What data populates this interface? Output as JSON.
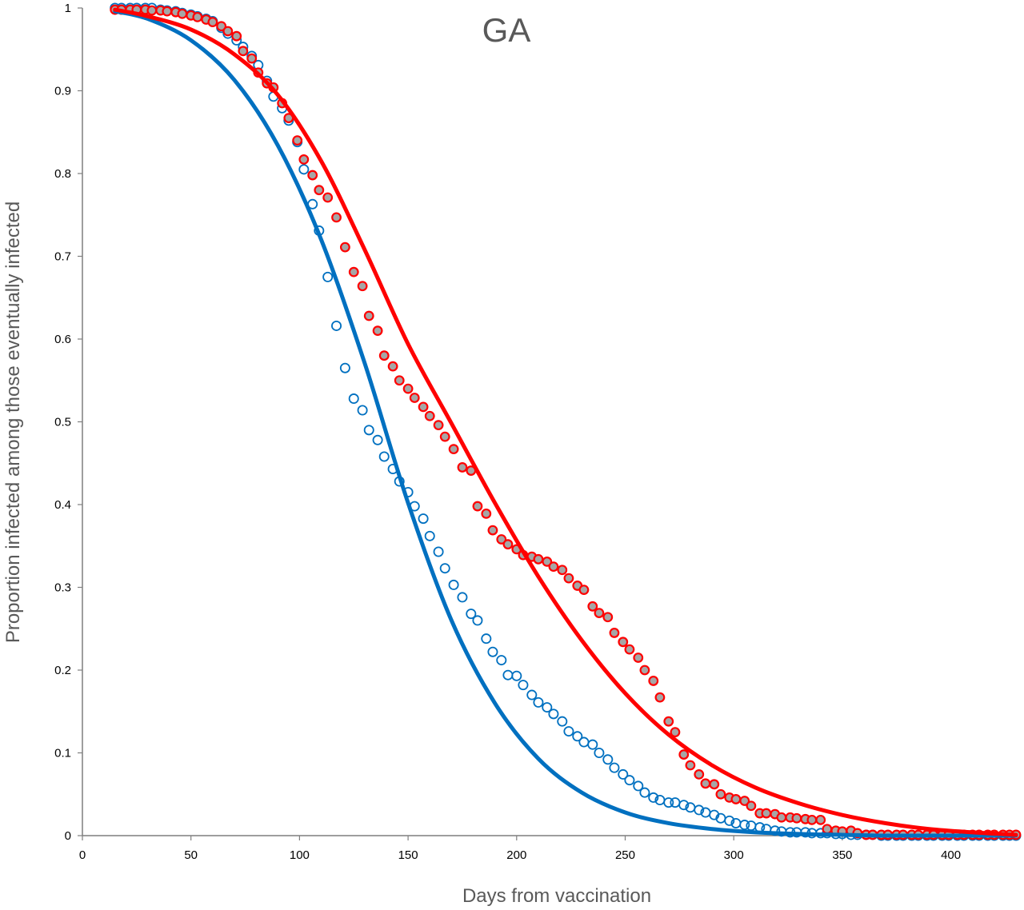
{
  "chart_data": {
    "type": "scatter",
    "title": "GA",
    "xlabel": "Days from vaccination",
    "ylabel": "Proportion infected among those eventually infected",
    "xlim": [
      0,
      430
    ],
    "ylim": [
      0,
      1
    ],
    "xticks": [
      0,
      50,
      100,
      150,
      200,
      250,
      300,
      350,
      400
    ],
    "yticks": [
      0,
      0.1,
      0.2,
      0.3,
      0.4,
      0.5,
      0.6,
      0.7,
      0.8,
      0.9,
      1
    ],
    "ytick_labels": [
      "0",
      "0.1",
      "0.2",
      "0.3",
      "0.4",
      "0.5",
      "0.6",
      "0.7",
      "0.8",
      "0.9",
      "1"
    ],
    "grid": false,
    "legend": "none",
    "colors": {
      "blue": "#0070c0",
      "red": "#ff0000",
      "gray_fill": "#a6a6a6",
      "axis": "#7f7f7f"
    },
    "series": [
      {
        "kind": "points-hollow",
        "color": "#0070c0",
        "x": [
          15,
          18,
          22,
          25,
          29,
          32,
          36,
          39,
          43,
          46,
          50,
          53,
          57,
          60,
          64,
          67,
          71,
          74,
          78,
          81,
          85,
          88,
          92,
          95,
          99,
          102,
          106,
          109,
          113,
          117,
          121,
          125,
          129,
          132,
          136,
          139,
          143,
          146,
          150,
          153,
          157,
          160,
          164,
          167,
          171,
          175,
          179,
          182,
          186,
          189,
          193,
          196,
          200,
          203,
          207,
          210,
          214,
          217,
          221,
          224,
          228,
          231,
          235,
          238,
          242,
          245,
          249,
          252,
          256,
          259,
          263,
          266,
          270,
          273,
          277,
          280,
          284,
          287,
          291,
          294,
          298,
          301,
          305,
          308,
          312,
          315,
          319,
          322,
          326,
          329,
          333,
          336,
          340,
          343,
          347,
          350,
          354,
          357,
          361,
          364,
          368,
          371,
          375,
          378,
          382,
          385,
          389,
          392,
          396,
          399,
          403,
          406,
          410,
          413,
          417,
          420,
          424,
          427,
          430
        ],
        "y": [
          1.0,
          1.0,
          1.0,
          1.0,
          1.0,
          1.0,
          0.998,
          0.997,
          0.996,
          0.994,
          0.992,
          0.99,
          0.987,
          0.984,
          0.976,
          0.969,
          0.961,
          0.953,
          0.942,
          0.931,
          0.912,
          0.893,
          0.879,
          0.864,
          0.838,
          0.805,
          0.763,
          0.731,
          0.675,
          0.616,
          0.565,
          0.528,
          0.514,
          0.49,
          0.478,
          0.458,
          0.443,
          0.428,
          0.415,
          0.398,
          0.383,
          0.362,
          0.343,
          0.323,
          0.303,
          0.288,
          0.268,
          0.26,
          0.238,
          0.222,
          0.212,
          0.194,
          0.193,
          0.182,
          0.17,
          0.161,
          0.155,
          0.147,
          0.138,
          0.126,
          0.12,
          0.113,
          0.11,
          0.1,
          0.092,
          0.082,
          0.074,
          0.067,
          0.06,
          0.052,
          0.046,
          0.043,
          0.04,
          0.04,
          0.037,
          0.034,
          0.031,
          0.028,
          0.025,
          0.021,
          0.018,
          0.015,
          0.013,
          0.012,
          0.01,
          0.008,
          0.006,
          0.005,
          0.004,
          0.004,
          0.004,
          0.003,
          0.003,
          0.003,
          0.002,
          0.002,
          0.001,
          0.001,
          0.001,
          0.001,
          0.0,
          0.0,
          0.0,
          0.0,
          0.0,
          0.0,
          0.0,
          0.0,
          0.0,
          0.0,
          0.0,
          0.0,
          0.0,
          0.0,
          0.0,
          0.0,
          0.0,
          0.0,
          0.0
        ]
      },
      {
        "kind": "points-filled",
        "color": "#ff0000",
        "fill": "#a6a6a6",
        "x": [
          15,
          18,
          22,
          25,
          29,
          32,
          36,
          39,
          43,
          46,
          50,
          53,
          57,
          60,
          64,
          67,
          71,
          74,
          78,
          81,
          85,
          88,
          92,
          95,
          99,
          102,
          106,
          109,
          113,
          117,
          121,
          125,
          129,
          132,
          136,
          139,
          143,
          146,
          150,
          153,
          157,
          160,
          164,
          167,
          171,
          175,
          179,
          182,
          186,
          189,
          193,
          196,
          200,
          203,
          207,
          210,
          214,
          217,
          221,
          224,
          228,
          231,
          235,
          238,
          242,
          245,
          249,
          252,
          256,
          259,
          263,
          266,
          270,
          273,
          277,
          280,
          284,
          287,
          291,
          294,
          298,
          301,
          305,
          308,
          312,
          315,
          319,
          322,
          326,
          329,
          333,
          336,
          340,
          343,
          347,
          350,
          354,
          357,
          361,
          364,
          368,
          371,
          375,
          378,
          382,
          385,
          389,
          392,
          396,
          399,
          403,
          406,
          410,
          413,
          417,
          420,
          424,
          427,
          430
        ],
        "y": [
          0.998,
          0.998,
          0.998,
          0.998,
          0.998,
          0.997,
          0.997,
          0.996,
          0.995,
          0.993,
          0.991,
          0.989,
          0.986,
          0.983,
          0.978,
          0.972,
          0.966,
          0.948,
          0.939,
          0.922,
          0.909,
          0.904,
          0.885,
          0.867,
          0.84,
          0.817,
          0.798,
          0.78,
          0.771,
          0.747,
          0.711,
          0.681,
          0.664,
          0.628,
          0.61,
          0.58,
          0.567,
          0.55,
          0.54,
          0.529,
          0.518,
          0.507,
          0.496,
          0.482,
          0.467,
          0.445,
          0.441,
          0.398,
          0.389,
          0.369,
          0.358,
          0.352,
          0.346,
          0.339,
          0.337,
          0.334,
          0.331,
          0.325,
          0.321,
          0.311,
          0.302,
          0.297,
          0.277,
          0.269,
          0.264,
          0.245,
          0.234,
          0.225,
          0.215,
          0.2,
          0.187,
          0.167,
          0.138,
          0.125,
          0.098,
          0.085,
          0.074,
          0.063,
          0.062,
          0.05,
          0.046,
          0.044,
          0.042,
          0.036,
          0.027,
          0.027,
          0.026,
          0.022,
          0.022,
          0.021,
          0.02,
          0.019,
          0.019,
          0.008,
          0.006,
          0.005,
          0.006,
          0.003,
          0.001,
          0.001,
          0.001,
          0.001,
          0.001,
          0.001,
          0.001,
          0.001,
          0.001,
          0.001,
          0.001,
          0.001,
          0.001,
          0.001,
          0.001,
          0.001,
          0.001,
          0.001,
          0.001,
          0.001,
          0.001
        ]
      },
      {
        "kind": "line",
        "color": "#0070c0",
        "x": [
          15,
          30,
          50,
          70,
          90,
          110,
          130,
          150,
          170,
          190,
          210,
          230,
          250,
          270,
          290,
          310,
          330,
          350,
          370,
          390,
          410,
          430
        ],
        "y": [
          0.996,
          0.987,
          0.961,
          0.913,
          0.834,
          0.72,
          0.571,
          0.402,
          0.26,
          0.16,
          0.093,
          0.052,
          0.028,
          0.015,
          0.008,
          0.004,
          0.002,
          0.001,
          0.0,
          0.0,
          0.0,
          0.0
        ]
      },
      {
        "kind": "line",
        "color": "#ff0000",
        "x": [
          15,
          30,
          50,
          70,
          90,
          110,
          130,
          150,
          170,
          190,
          210,
          230,
          250,
          270,
          290,
          310,
          330,
          350,
          370,
          390,
          410,
          430
        ],
        "y": [
          0.998,
          0.99,
          0.974,
          0.944,
          0.895,
          0.815,
          0.708,
          0.594,
          0.498,
          0.402,
          0.313,
          0.236,
          0.172,
          0.122,
          0.085,
          0.058,
          0.039,
          0.025,
          0.015,
          0.008,
          0.004,
          0.001
        ]
      }
    ]
  }
}
